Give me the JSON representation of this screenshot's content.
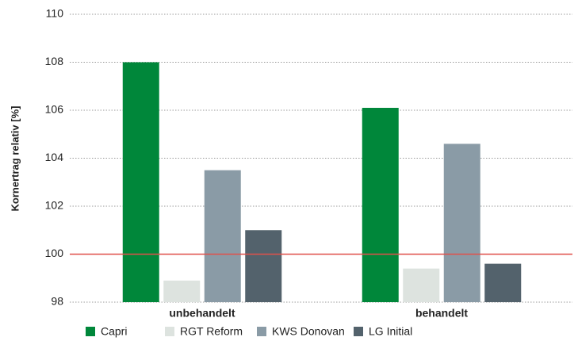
{
  "chart_data": {
    "type": "bar",
    "y_label": "Kornertrag relativ [%]",
    "categories": [
      "unbehandelt",
      "behandelt"
    ],
    "series": [
      {
        "name": "Capri",
        "color": "#00873a",
        "values": [
          108.0,
          106.1
        ]
      },
      {
        "name": "RGT Reform",
        "color": "#dde3df",
        "values": [
          98.9,
          99.4
        ]
      },
      {
        "name": "KWS Donovan",
        "color": "#8a9ba6",
        "values": [
          103.5,
          104.6
        ]
      },
      {
        "name": "LG Initial",
        "color": "#53626c",
        "values": [
          101.0,
          99.6
        ]
      }
    ],
    "ylim": [
      98,
      110
    ],
    "yticks": [
      98,
      100,
      102,
      104,
      106,
      108,
      110
    ],
    "grid": true,
    "reference_line": {
      "value": 100,
      "color": "#e0504a"
    },
    "legend": "bottom"
  }
}
